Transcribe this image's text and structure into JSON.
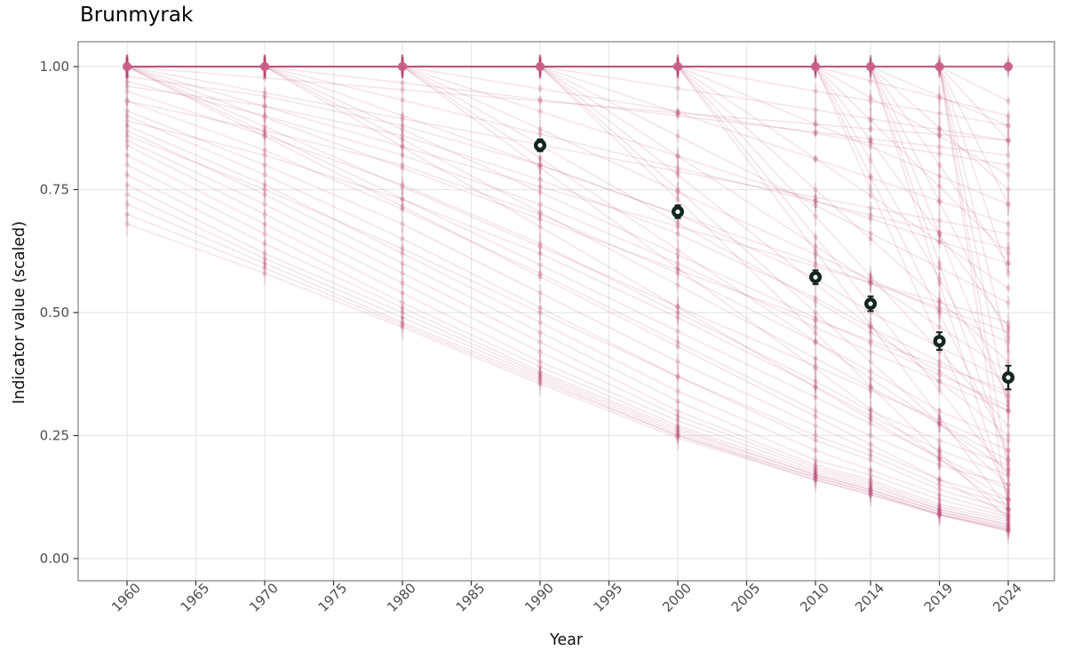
{
  "title": "Brunmyrak",
  "chart_data": {
    "type": "line",
    "title": "Brunmyrak",
    "xlabel": "Year",
    "ylabel": "Indicator value (scaled)",
    "xlim": [
      1956.4,
      2027.4
    ],
    "ylim": [
      -0.045,
      1.05
    ],
    "grid": true,
    "legend": false,
    "x_ticks": [
      1960,
      1965,
      1970,
      1975,
      1980,
      1985,
      1990,
      1995,
      2000,
      2005,
      2010,
      2014,
      2019,
      2024
    ],
    "y_ticks": [
      {
        "v": 0.0,
        "label": "0.00"
      },
      {
        "v": 0.25,
        "label": "0.25"
      },
      {
        "v": 0.5,
        "label": "0.50"
      },
      {
        "v": 0.75,
        "label": "0.75"
      },
      {
        "v": 1.0,
        "label": "1.00"
      }
    ],
    "assessment_years": [
      1960,
      1970,
      1980,
      1990,
      2000,
      2010,
      2014,
      2019,
      2024
    ],
    "summary_points": [
      {
        "year": 1990,
        "value": 0.84,
        "lo": 0.828,
        "hi": 0.852
      },
      {
        "year": 2000,
        "value": 0.705,
        "lo": 0.692,
        "hi": 0.718
      },
      {
        "year": 2010,
        "value": 0.572,
        "lo": 0.558,
        "hi": 0.586
      },
      {
        "year": 2014,
        "value": 0.518,
        "lo": 0.503,
        "hi": 0.533
      },
      {
        "year": 2019,
        "value": 0.442,
        "lo": 0.424,
        "hi": 0.46
      },
      {
        "year": 2024,
        "value": 0.368,
        "lo": 0.344,
        "hi": 0.392
      }
    ],
    "series_point_err_cycle": [
      0.008,
      0.014,
      0.02,
      0.011,
      0.017,
      0.024
    ],
    "series": [
      [
        1,
        1,
        1,
        1,
        1,
        1,
        1,
        1,
        1
      ],
      [
        1,
        1,
        1,
        1,
        1,
        1,
        1,
        1,
        1
      ],
      [
        1,
        1,
        1,
        1,
        1,
        1,
        1,
        1,
        1
      ],
      [
        1,
        1,
        1,
        1,
        1,
        1,
        1,
        1,
        1
      ],
      [
        1,
        1,
        1,
        1,
        1,
        1,
        1,
        1,
        1
      ],
      [
        1,
        1,
        1,
        1,
        1,
        1,
        1,
        1,
        1
      ],
      [
        1,
        1,
        1,
        1,
        1,
        1,
        1,
        1,
        0.93
      ],
      [
        1,
        1,
        1,
        1,
        1,
        1,
        1,
        1,
        0.85
      ],
      [
        1,
        1,
        1,
        1,
        1,
        1,
        1,
        1,
        0.72
      ],
      [
        1,
        1,
        1,
        1,
        1,
        1,
        1,
        1,
        0.58
      ],
      [
        1,
        1,
        1,
        1,
        1,
        1,
        1,
        1,
        0.42
      ],
      [
        1,
        1,
        1,
        1,
        1,
        1,
        1,
        1,
        0.3
      ],
      [
        1,
        1,
        1,
        1,
        1,
        1,
        1,
        1,
        0.18
      ],
      [
        1,
        1,
        1,
        1,
        1,
        1,
        1,
        1,
        0.1
      ],
      [
        1,
        1,
        1,
        1,
        1,
        1,
        1,
        0.94,
        0.88
      ],
      [
        1,
        1,
        1,
        1,
        1,
        1,
        1,
        0.875,
        0.75
      ],
      [
        1,
        1,
        1,
        1,
        1,
        1,
        1,
        0.8,
        0.6
      ],
      [
        1,
        1,
        1,
        1,
        1,
        1,
        1,
        0.725,
        0.45
      ],
      [
        1,
        1,
        1,
        1,
        1,
        1,
        1,
        0.66,
        0.32
      ],
      [
        1,
        1,
        1,
        1,
        1,
        1,
        1,
        0.6,
        0.2
      ],
      [
        1,
        1,
        1,
        1,
        1,
        1,
        1,
        0.56,
        0.12
      ],
      [
        1,
        1,
        1,
        1,
        1,
        1,
        0.971,
        0.936,
        0.9
      ],
      [
        1,
        1,
        1,
        1,
        1,
        1,
        0.937,
        0.859,
        0.78
      ],
      [
        1,
        1,
        1,
        1,
        1,
        1,
        0.891,
        0.756,
        0.62
      ],
      [
        1,
        1,
        1,
        1,
        1,
        1,
        0.849,
        0.659,
        0.47
      ],
      [
        1,
        1,
        1,
        1,
        1,
        1,
        0.809,
        0.569,
        0.33
      ],
      [
        1,
        1,
        1,
        1,
        1,
        1,
        0.777,
        0.499,
        0.22
      ],
      [
        1,
        1,
        1,
        1,
        1,
        1,
        0.751,
        0.441,
        0.13
      ],
      [
        1,
        1,
        1,
        1,
        1,
        0.95,
        0.93,
        0.905,
        0.88
      ],
      [
        1,
        1,
        1,
        1,
        1,
        0.883,
        0.837,
        0.778,
        0.72
      ],
      [
        1,
        1,
        1,
        1,
        1,
        0.813,
        0.738,
        0.644,
        0.55
      ],
      [
        1,
        1,
        1,
        1,
        1,
        0.75,
        0.65,
        0.525,
        0.4
      ],
      [
        1,
        1,
        1,
        1,
        1,
        0.696,
        0.574,
        0.422,
        0.27
      ],
      [
        1,
        1,
        1,
        1,
        1,
        0.654,
        0.516,
        0.343,
        0.17
      ],
      [
        1,
        1,
        1,
        1,
        1,
        0.625,
        0.475,
        0.288,
        0.1
      ],
      [
        1,
        1,
        1,
        1,
        0.956,
        0.912,
        0.894,
        0.872,
        0.85
      ],
      [
        1,
        1,
        1,
        1,
        0.906,
        0.812,
        0.774,
        0.727,
        0.68
      ],
      [
        1,
        1,
        1,
        1,
        0.859,
        0.718,
        0.661,
        0.591,
        0.52
      ],
      [
        1,
        1,
        1,
        1,
        0.818,
        0.635,
        0.562,
        0.471,
        0.38
      ],
      [
        1,
        1,
        1,
        1,
        0.78,
        0.559,
        0.471,
        0.36,
        0.25
      ],
      [
        1,
        1,
        1,
        1,
        0.75,
        0.5,
        0.4,
        0.275,
        0.15
      ],
      [
        1,
        1,
        1,
        1,
        0.73,
        0.459,
        0.35,
        0.215,
        0.08
      ],
      [
        1,
        1,
        1,
        0.955,
        0.909,
        0.864,
        0.845,
        0.823,
        0.8
      ],
      [
        1,
        1,
        1,
        0.909,
        0.818,
        0.727,
        0.691,
        0.645,
        0.6
      ],
      [
        1,
        1,
        1,
        0.873,
        0.745,
        0.618,
        0.567,
        0.504,
        0.44
      ],
      [
        1,
        1,
        1,
        0.841,
        0.682,
        0.523,
        0.459,
        0.38,
        0.3
      ],
      [
        1,
        1,
        1,
        0.814,
        0.627,
        0.441,
        0.366,
        0.273,
        0.18
      ],
      [
        1,
        1,
        1,
        0.795,
        0.59,
        0.386,
        0.304,
        0.203,
        0.1
      ],
      [
        1,
        1,
        0.967,
        0.933,
        0.9,
        0.867,
        0.853,
        0.837,
        0.82
      ],
      [
        1,
        1,
        0.932,
        0.863,
        0.794,
        0.726,
        0.698,
        0.664,
        0.63
      ],
      [
        1,
        1,
        0.9,
        0.8,
        0.7,
        0.6,
        0.56,
        0.51,
        0.46
      ],
      [
        1,
        1,
        0.872,
        0.745,
        0.617,
        0.489,
        0.438,
        0.374,
        0.31
      ],
      [
        1,
        1,
        0.852,
        0.704,
        0.556,
        0.407,
        0.348,
        0.274,
        0.2
      ],
      [
        1,
        1,
        0.837,
        0.674,
        0.511,
        0.348,
        0.283,
        0.202,
        0.12
      ],
      [
        1,
        0.977,
        0.953,
        0.93,
        0.906,
        0.883,
        0.873,
        0.862,
        0.85
      ],
      [
        1,
        0.947,
        0.894,
        0.841,
        0.787,
        0.734,
        0.713,
        0.687,
        0.66
      ],
      [
        1,
        0.919,
        0.837,
        0.756,
        0.675,
        0.594,
        0.561,
        0.521,
        0.48
      ],
      [
        1,
        0.897,
        0.794,
        0.69,
        0.587,
        0.484,
        0.443,
        0.392,
        0.34
      ],
      [
        1,
        0.878,
        0.756,
        0.634,
        0.512,
        0.391,
        0.342,
        0.281,
        0.22
      ],
      [
        1,
        0.866,
        0.731,
        0.597,
        0.462,
        0.328,
        0.274,
        0.207,
        0.14
      ],
      [
        1,
        0.858,
        0.716,
        0.573,
        0.431,
        0.289,
        0.232,
        0.161,
        0.09
      ],
      [
        0.97,
        0.9,
        0.82,
        0.72,
        0.6,
        0.47,
        0.42,
        0.36,
        0.3
      ],
      [
        0.95,
        0.86,
        0.76,
        0.64,
        0.5,
        0.36,
        0.3,
        0.24,
        0.19
      ],
      [
        0.93,
        0.83,
        0.71,
        0.58,
        0.44,
        0.3,
        0.25,
        0.19,
        0.15
      ],
      [
        0.91,
        0.8,
        0.68,
        0.54,
        0.4,
        0.27,
        0.22,
        0.16,
        0.12
      ],
      [
        0.9,
        0.78,
        0.65,
        0.51,
        0.37,
        0.24,
        0.2,
        0.14,
        0.1
      ],
      [
        0.88,
        0.76,
        0.62,
        0.48,
        0.34,
        0.22,
        0.18,
        0.13,
        0.09
      ],
      [
        0.87,
        0.74,
        0.6,
        0.46,
        0.32,
        0.2,
        0.17,
        0.12,
        0.085
      ],
      [
        0.85,
        0.72,
        0.58,
        0.44,
        0.3,
        0.19,
        0.16,
        0.11,
        0.08
      ],
      [
        0.84,
        0.7,
        0.56,
        0.42,
        0.29,
        0.185,
        0.155,
        0.105,
        0.075
      ],
      [
        0.82,
        0.68,
        0.54,
        0.4,
        0.28,
        0.18,
        0.15,
        0.1,
        0.07
      ],
      [
        0.8,
        0.66,
        0.52,
        0.39,
        0.27,
        0.175,
        0.145,
        0.1,
        0.068
      ],
      [
        0.78,
        0.64,
        0.51,
        0.38,
        0.265,
        0.17,
        0.14,
        0.095,
        0.065
      ],
      [
        0.76,
        0.62,
        0.5,
        0.375,
        0.26,
        0.17,
        0.14,
        0.095,
        0.062
      ],
      [
        0.74,
        0.61,
        0.49,
        0.37,
        0.255,
        0.165,
        0.135,
        0.09,
        0.06
      ],
      [
        0.72,
        0.6,
        0.48,
        0.365,
        0.25,
        0.165,
        0.135,
        0.09,
        0.058
      ],
      [
        0.7,
        0.59,
        0.475,
        0.36,
        0.25,
        0.16,
        0.13,
        0.09,
        0.057
      ],
      [
        0.68,
        0.58,
        0.47,
        0.355,
        0.245,
        0.16,
        0.13,
        0.088,
        0.055
      ],
      [
        0.93,
        0.87,
        0.8,
        0.7,
        0.58,
        0.44,
        0.38,
        0.3,
        0.24
      ],
      [
        0.89,
        0.82,
        0.73,
        0.62,
        0.49,
        0.35,
        0.29,
        0.22,
        0.17
      ],
      [
        0.96,
        0.92,
        0.86,
        0.77,
        0.66,
        0.53,
        0.47,
        0.4,
        0.33
      ],
      [
        0.86,
        0.75,
        0.63,
        0.5,
        0.37,
        0.25,
        0.21,
        0.15,
        0.11
      ],
      [
        0.98,
        0.94,
        0.88,
        0.8,
        0.7,
        0.57,
        0.5,
        0.43,
        0.36
      ]
    ],
    "colors": {
      "trajectory_line": "#b5406e",
      "trajectory_point": "#bf4e7a",
      "top_line": "#c25a80",
      "top_dot": "#c86088",
      "summary_point": "#13261e",
      "grid": "#e8e8e8",
      "panel_border": "#7d7d7d",
      "tick_mark": "#333333",
      "tick_text": "#4d4d4d"
    }
  }
}
